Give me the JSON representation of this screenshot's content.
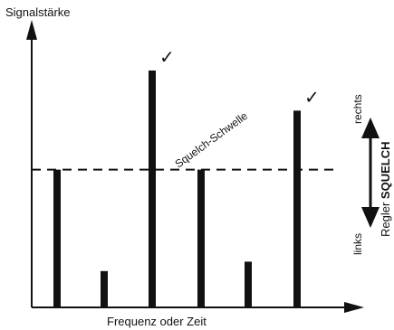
{
  "diagram": {
    "y_axis_label": "Signalstärke",
    "x_axis_label": "Frequenz oder Zeit",
    "threshold_label": "Squelch-Schwelle",
    "control": {
      "label_prefix": "Regler ",
      "label_strong": "SQUELCH",
      "top_label": "rechts",
      "bottom_label": "links"
    },
    "checkmark_glyph": "✓"
  },
  "chart_data": {
    "type": "bar",
    "x_axis": "Frequenz oder Zeit",
    "y_axis": "Signalstärke",
    "threshold": 0.58,
    "threshold_name": "Squelch-Schwelle",
    "values": [
      0.58,
      0.15,
      1.0,
      0.58,
      0.19,
      0.83
    ],
    "above_threshold_marked": [
      false,
      false,
      true,
      false,
      false,
      true
    ],
    "ylim": [
      0,
      1
    ],
    "grid": false,
    "colors": {
      "ink": "#111111",
      "background": "#ffffff"
    }
  }
}
